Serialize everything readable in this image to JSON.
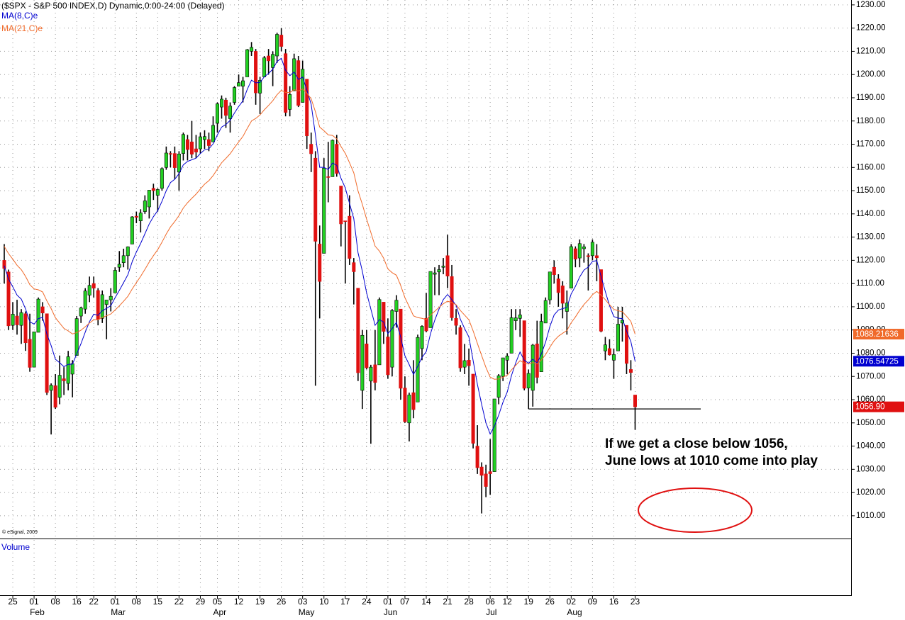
{
  "chart_data": {
    "type": "candlestick",
    "title": "($SPX - S&P 500 INDEX,D) Dynamic,0:00-24:00 (Delayed)",
    "copyright": "© eSignal, 2009",
    "volume_label": "Volume",
    "categories": [
      null,
      null,
      "25",
      null,
      null,
      null,
      null,
      "01",
      null,
      null,
      null,
      null,
      "08",
      null,
      null,
      null,
      null,
      "16",
      null,
      null,
      null,
      "22",
      null,
      null,
      null,
      null,
      "01",
      null,
      null,
      null,
      null,
      "08",
      null,
      null,
      null,
      null,
      "15",
      null,
      null,
      null,
      null,
      "22",
      null,
      null,
      null,
      null,
      "29",
      null,
      null,
      null,
      "05",
      null,
      null,
      null,
      null,
      "12",
      null,
      null,
      null,
      null,
      "19",
      null,
      null,
      null,
      null,
      "26",
      null,
      null,
      null,
      null,
      "03",
      null,
      null,
      null,
      null,
      "10",
      null,
      null,
      null,
      null,
      "17",
      null,
      null,
      null,
      null,
      "24",
      null,
      null,
      null,
      null,
      "01",
      null,
      null,
      null,
      "07",
      null,
      null,
      null,
      null,
      "14",
      null,
      null,
      null,
      null,
      "21",
      null,
      null,
      null,
      null,
      "28",
      null,
      null,
      null,
      null,
      "06",
      null,
      null,
      null,
      "12",
      null,
      null,
      null,
      null,
      "19",
      null,
      null,
      null,
      null,
      "26",
      null,
      null,
      null,
      null,
      "02",
      null,
      null,
      null,
      null,
      "09",
      null,
      null,
      null,
      null,
      "16",
      null,
      null,
      null,
      null,
      "23"
    ],
    "months": [
      null,
      null,
      null,
      null,
      null,
      null,
      null,
      "Feb",
      null,
      null,
      null,
      null,
      null,
      null,
      null,
      null,
      null,
      null,
      null,
      null,
      null,
      null,
      null,
      null,
      null,
      null,
      "Mar",
      null,
      null,
      null,
      null,
      null,
      null,
      null,
      null,
      null,
      null,
      null,
      null,
      null,
      null,
      null,
      null,
      null,
      null,
      null,
      null,
      null,
      null,
      null,
      "Apr",
      null,
      null,
      null,
      null,
      null,
      null,
      null,
      null,
      null,
      null,
      null,
      null,
      null,
      null,
      null,
      null,
      null,
      null,
      null,
      "May",
      null,
      null,
      null,
      null,
      null,
      null,
      null,
      null,
      null,
      null,
      null,
      null,
      null,
      null,
      null,
      null,
      null,
      null,
      null,
      "Jun",
      null,
      null,
      null,
      null,
      null,
      null,
      null,
      null,
      null,
      null,
      null,
      null,
      null,
      null,
      null,
      null,
      null,
      null,
      null,
      null,
      null,
      null,
      null,
      "Jul",
      null,
      null,
      null,
      null,
      null,
      null,
      null,
      null,
      null,
      null,
      null,
      null,
      null,
      null,
      null,
      null,
      null,
      null,
      "Aug",
      null,
      null,
      null,
      null,
      null,
      null,
      null,
      null,
      null,
      null,
      null,
      null,
      null,
      null,
      null
    ],
    "open": [
      1120,
      1115,
      1092,
      1096,
      1092,
      1097,
      1086,
      1074,
      1089,
      1100,
      1097,
      1064,
      1066,
      1061,
      1069,
      1067,
      1071,
      1079,
      1096,
      1099,
      1105,
      1110,
      1107,
      1095,
      1101,
      1103,
      1106,
      1117,
      1119,
      1122,
      1127,
      1139,
      1137,
      1141,
      1143,
      1151,
      1148,
      1151,
      1160,
      1166,
      1166,
      1158,
      1166,
      1172,
      1171,
      1168,
      1168,
      1172,
      1172,
      1171,
      1179,
      1186,
      1189,
      1181,
      1188,
      1195,
      1195,
      1199,
      1210,
      1210,
      1192,
      1199,
      1208,
      1203,
      1208,
      1217,
      1209,
      1185,
      1193,
      1206,
      1188,
      1198,
      1170,
      1164,
      1127,
      1123,
      1156,
      1156,
      1170,
      1152,
      1137,
      1139,
      1119,
      1108,
      1064,
      1084,
      1068,
      1075,
      1075,
      1102,
      1087,
      1074,
      1098,
      1099,
      1065,
      1050,
      1063,
      1059,
      1082,
      1095,
      1091,
      1114,
      1115,
      1117,
      1122,
      1113,
      1095,
      1091,
      1074,
      1077,
      1071,
      1040,
      1031,
      1028,
      1029,
      1029,
      1061,
      1070,
      1077,
      1080,
      1094,
      1095,
      1094,
      1065,
      1064,
      1084,
      1072,
      1093,
      1103,
      1117,
      1112,
      1109,
      1098,
      1108,
      1125,
      1121,
      1125,
      1122,
      1122,
      1122,
      1116,
      1081,
      1082,
      1077,
      1081,
      1093,
      1092,
      1073,
      1062
    ],
    "high": [
      1127,
      1116,
      1102,
      1103,
      1099,
      1098,
      1097,
      1089,
      1104,
      1102,
      1097,
      1067,
      1071,
      1079,
      1074,
      1081,
      1077,
      1096,
      1100,
      1108,
      1113,
      1113,
      1108,
      1107,
      1103,
      1108,
      1117,
      1124,
      1125,
      1126,
      1139,
      1141,
      1142,
      1148,
      1150,
      1153,
      1151,
      1160,
      1169,
      1167,
      1169,
      1167,
      1175,
      1174,
      1180,
      1174,
      1175,
      1176,
      1175,
      1182,
      1188,
      1191,
      1190,
      1188,
      1195,
      1200,
      1199,
      1211,
      1214,
      1211,
      1199,
      1208,
      1211,
      1210,
      1218,
      1220,
      1211,
      1195,
      1209,
      1208,
      1206,
      1198,
      1175,
      1167,
      1135,
      1164,
      1171,
      1172,
      1174,
      1152,
      1137,
      1148,
      1121,
      1108,
      1090,
      1090,
      1075,
      1090,
      1104,
      1102,
      1095,
      1099,
      1105,
      1099,
      1070,
      1063,
      1077,
      1088,
      1092,
      1106,
      1115,
      1117,
      1118,
      1121,
      1131,
      1118,
      1099,
      1092,
      1084,
      1082,
      1071,
      1049,
      1033,
      1032,
      1043,
      1060,
      1071,
      1078,
      1080,
      1099,
      1099,
      1099,
      1094,
      1073,
      1084,
      1094,
      1097,
      1104,
      1115,
      1120,
      1114,
      1111,
      1107,
      1127,
      1126,
      1129,
      1127,
      1123,
      1129,
      1127,
      1116,
      1087,
      1086,
      1082,
      1100,
      1100,
      1092,
      1077,
      1062
    ],
    "low": [
      1110,
      1090,
      1090,
      1088,
      1084,
      1081,
      1072,
      1074,
      1089,
      1094,
      1062,
      1045,
      1056,
      1058,
      1062,
      1064,
      1061,
      1079,
      1093,
      1097,
      1102,
      1104,
      1092,
      1093,
      1086,
      1098,
      1106,
      1115,
      1117,
      1116,
      1127,
      1136,
      1132,
      1140,
      1138,
      1146,
      1141,
      1150,
      1159,
      1160,
      1155,
      1150,
      1163,
      1163,
      1164,
      1164,
      1166,
      1168,
      1167,
      1171,
      1175,
      1181,
      1177,
      1175,
      1187,
      1195,
      1188,
      1199,
      1208,
      1187,
      1183,
      1199,
      1200,
      1195,
      1205,
      1210,
      1182,
      1182,
      1193,
      1186,
      1188,
      1168,
      1158,
      1066,
      1095,
      1123,
      1145,
      1156,
      1156,
      1126,
      1110,
      1118,
      1101,
      1068,
      1056,
      1073,
      1041,
      1064,
      1075,
      1084,
      1069,
      1070,
      1091,
      1060,
      1050,
      1042,
      1052,
      1059,
      1077,
      1089,
      1091,
      1105,
      1105,
      1114,
      1108,
      1094,
      1088,
      1072,
      1071,
      1066,
      1039,
      1028,
      1011,
      1018,
      1019,
      1029,
      1058,
      1068,
      1071,
      1080,
      1090,
      1087,
      1064,
      1056,
      1057,
      1067,
      1072,
      1093,
      1101,
      1110,
      1100,
      1095,
      1088,
      1108,
      1117,
      1117,
      1119,
      1107,
      1120,
      1111,
      1089,
      1077,
      1079,
      1069,
      1081,
      1085,
      1071,
      1064,
      1047
    ],
    "close": [
      1116.5,
      1091.8,
      1096.8,
      1092.2,
      1097.5,
      1084.5,
      1073.9,
      1089.2,
      1103.3,
      1097.3,
      1063.1,
      1066.2,
      1056.7,
      1070.5,
      1068.1,
      1078.5,
      1075.5,
      1094.9,
      1099.5,
      1106.8,
      1109.2,
      1108.0,
      1094.6,
      1105.2,
      1102.9,
      1104.5,
      1115.7,
      1118.3,
      1122.0,
      1125.8,
      1138.7,
      1138.5,
      1140.4,
      1145.6,
      1150.2,
      1150.0,
      1150.5,
      1159.5,
      1166.2,
      1165.8,
      1159.9,
      1165.8,
      1174.2,
      1167.7,
      1165.7,
      1166.6,
      1173.2,
      1173.3,
      1169.4,
      1178.1,
      1187.4,
      1189.4,
      1182.4,
      1186.4,
      1194.4,
      1196.5,
      1197.3,
      1210.7,
      1211.7,
      1192.1,
      1197.5,
      1207.2,
      1205.9,
      1208.7,
      1217.3,
      1212.1,
      1183.7,
      1191.4,
      1206.8,
      1186.7,
      1202.3,
      1173.6,
      1165.9,
      1128.2,
      1110.9,
      1159.7,
      1155.8,
      1171.7,
      1157.4,
      1135.7,
      1136.9,
      1120.8,
      1115.1,
      1071.6,
      1087.7,
      1073.7,
      1074.0,
      1067.4,
      1103.1,
      1089.4,
      1070.7,
      1098.4,
      1102.8,
      1064.9,
      1050.5,
      1062.0,
      1055.7,
      1086.8,
      1091.6,
      1089.6,
      1115.2,
      1114.6,
      1116.0,
      1117.5,
      1113.2,
      1095.3,
      1092.0,
      1073.7,
      1076.8,
      1074.6,
      1041.2,
      1030.7,
      1027.4,
      1022.6,
      1028.1,
      1060.3,
      1070.3,
      1078.0,
      1078.8,
      1095.3,
      1095.2,
      1096.5,
      1064.9,
      1071.3,
      1083.5,
      1069.6,
      1093.7,
      1102.7,
      1115.0,
      1113.8,
      1106.1,
      1101.5,
      1101.6,
      1125.9,
      1120.5,
      1127.2,
      1125.8,
      1121.6,
      1127.8,
      1121.1,
      1089.5,
      1083.6,
      1079.3,
      1079.4,
      1092.5,
      1094.2,
      1075.6,
      1071.7,
      1056.9
    ],
    "up_color": "#22d022",
    "down_color": "#e01010",
    "series": [
      {
        "name": "MA(8,C)e",
        "color": "#0000d0",
        "values": [
          1117.7,
          1111.9,
          1108.6,
          1105.0,
          1103.3,
          1099.1,
          1093.5,
          1092.5,
          1094.9,
          1095.4,
          1088.2,
          1083.3,
          1077.4,
          1075.9,
          1074.2,
          1075.2,
          1075.3,
          1079.7,
          1084.1,
          1089.1,
          1093.6,
          1096.8,
          1096.3,
          1098.3,
          1099.3,
          1100.5,
          1103.9,
          1107.1,
          1110.4,
          1113.8,
          1119.3,
          1123.6,
          1127.3,
          1131.4,
          1135.6,
          1138.8,
          1141.4,
          1145.4,
          1150.0,
          1153.5,
          1154.9,
          1157.3,
          1161.1,
          1162.6,
          1163.3,
          1164.0,
          1166.0,
          1167.6,
          1168.0,
          1170.2,
          1174.0,
          1177.4,
          1178.5,
          1180.3,
          1183.4,
          1186.3,
          1188.7,
          1193.6,
          1197.6,
          1196.4,
          1196.6,
          1199.0,
          1200.5,
          1202.3,
          1205.6,
          1207.0,
          1201.8,
          1199.5,
          1201.1,
          1197.9,
          1198.9,
          1193.3,
          1187.2,
          1174.1,
          1160.1,
          1160.0,
          1159.1,
          1161.9,
          1160.9,
          1155.3,
          1151.2,
          1144.5,
          1138.0,
          1123.3,
          1115.4,
          1106.1,
          1099.0,
          1092.0,
          1094.5,
          1093.4,
          1088.4,
          1090.6,
          1093.3,
          1087.0,
          1078.9,
          1075.1,
          1070.8,
          1074.4,
          1078.2,
          1080.7,
          1088.4,
          1094.2,
          1099.0,
          1103.1,
          1105.3,
          1103.1,
          1100.6,
          1094.6,
          1090.6,
          1087.0,
          1076.8,
          1066.6,
          1057.9,
          1050.1,
          1045.2,
          1048.6,
          1053.4,
          1058.9,
          1063.3,
          1070.4,
          1075.9,
          1080.5,
          1077.0,
          1075.7,
          1077.4,
          1075.7,
          1079.7,
          1084.8,
          1091.5,
          1096.5,
          1098.6,
          1099.2,
          1099.7,
          1105.5,
          1108.8,
          1112.9,
          1115.8,
          1117.1,
          1119.5,
          1119.9,
          1113.2,
          1106.6,
          1100.5,
          1095.8,
          1095.1,
          1094.9,
          1089.5,
          1085.0,
          1076.5
        ]
      },
      {
        "name": "MA(21,C)e",
        "color": "#f06a2a",
        "values": [
          1126.0,
          1122.9,
          1120.5,
          1117.9,
          1116.0,
          1113.1,
          1109.5,
          1107.7,
          1107.3,
          1106.4,
          1102.5,
          1099.2,
          1095.3,
          1093.0,
          1090.7,
          1089.6,
          1088.3,
          1088.9,
          1089.9,
          1091.4,
          1093.0,
          1094.4,
          1094.4,
          1095.4,
          1096.1,
          1096.9,
          1098.6,
          1100.4,
          1102.4,
          1104.5,
          1107.6,
          1110.4,
          1113.1,
          1116.1,
          1119.2,
          1122.0,
          1124.6,
          1127.8,
          1131.3,
          1134.4,
          1136.7,
          1139.3,
          1142.5,
          1144.8,
          1146.7,
          1148.5,
          1150.7,
          1152.8,
          1154.3,
          1156.5,
          1159.3,
          1162.0,
          1163.9,
          1165.9,
          1168.5,
          1171.0,
          1173.4,
          1176.8,
          1180.0,
          1181.1,
          1182.6,
          1184.8,
          1186.7,
          1188.7,
          1191.3,
          1193.2,
          1192.3,
          1192.2,
          1193.5,
          1192.9,
          1193.8,
          1192.0,
          1189.6,
          1184.0,
          1177.4,
          1175.8,
          1174.0,
          1173.8,
          1172.3,
          1169.0,
          1166.1,
          1162.0,
          1157.7,
          1149.9,
          1144.2,
          1137.8,
          1132.0,
          1126.1,
          1124.0,
          1120.9,
          1116.3,
          1114.7,
          1113.6,
          1109.2,
          1103.9,
          1100.1,
          1096.1,
          1095.3,
          1095.0,
          1094.5,
          1096.4,
          1098.1,
          1099.7,
          1101.3,
          1102.4,
          1101.8,
          1100.9,
          1098.4,
          1096.4,
          1094.4,
          1089.6,
          1084.2,
          1079.0,
          1073.9,
          1069.7,
          1068.8,
          1068.9,
          1069.7,
          1070.5,
          1072.8,
          1074.8,
          1076.8,
          1075.7,
          1075.3,
          1076.0,
          1075.4,
          1077.1,
          1079.4,
          1082.6,
          1085.4,
          1087.3,
          1088.6,
          1089.8,
          1093.1,
          1095.6,
          1098.5,
          1101.0,
          1102.9,
          1105.2,
          1106.6,
          1105.0,
          1103.1,
          1100.9,
          1098.9,
          1098.3,
          1097.9,
          1095.9,
          1093.7,
          1088.2
        ]
      }
    ],
    "ylim": [
      1000.2,
      1232.1
    ],
    "yticks": [
      {
        "value": 1010,
        "label": "1010.00"
      },
      {
        "value": 1020,
        "label": "1020.00"
      },
      {
        "value": 1030,
        "label": "1030.00"
      },
      {
        "value": 1040,
        "label": "1040.00"
      },
      {
        "value": 1050,
        "label": "1050.00"
      },
      {
        "value": 1060,
        "label": "1060.00"
      },
      {
        "value": 1070,
        "label": "1070.00"
      },
      {
        "value": 1080,
        "label": "1080.00"
      },
      {
        "value": 1090,
        "label": "1090.00"
      },
      {
        "value": 1100,
        "label": "1100.00"
      },
      {
        "value": 1110,
        "label": "1110.00"
      },
      {
        "value": 1120,
        "label": "1120.00"
      },
      {
        "value": 1130,
        "label": "1130.00"
      },
      {
        "value": 1140,
        "label": "1140.00"
      },
      {
        "value": 1150,
        "label": "1150.00"
      },
      {
        "value": 1160,
        "label": "1160.00"
      },
      {
        "value": 1170,
        "label": "1170.00"
      },
      {
        "value": 1180,
        "label": "1180.00"
      },
      {
        "value": 1190,
        "label": "1190.00"
      },
      {
        "value": 1200,
        "label": "1200.00"
      },
      {
        "value": 1210,
        "label": "1210.00"
      },
      {
        "value": 1220,
        "label": "1220.00"
      },
      {
        "value": 1230,
        "label": "1230.00"
      }
    ],
    "grid": true,
    "last_values": [
      {
        "value": 1088.21636,
        "label": "1088.21636",
        "color": "#f06a2a"
      },
      {
        "value": 1076.54725,
        "label": "1076.54725",
        "color": "#0000d0"
      },
      {
        "value": 1056.9,
        "label": "1056.90",
        "color": "#e01010"
      }
    ],
    "support_level": 1056,
    "annotation": [
      "If we get a close below 1056,",
      "June lows at 1010 come into play"
    ]
  }
}
